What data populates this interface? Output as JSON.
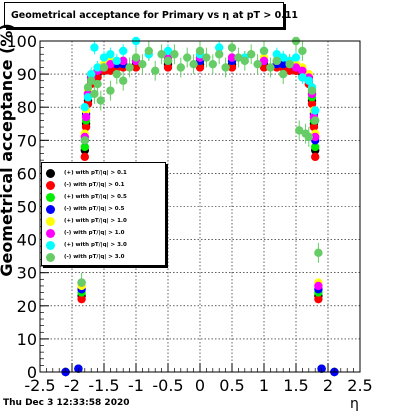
{
  "title": "Geometrical acceptance for Primary vs   η at pT > 0.11",
  "ylabel": "Geometrical acceptance (%)",
  "xlabel": "η",
  "footer": "Thu Dec  3 12:33:58 2020",
  "chart_data": {
    "type": "scatter",
    "title": "Geometrical acceptance for Primary vs   η at pT > 0.11",
    "xlabel": "η",
    "ylabel": "Geometrical acceptance (%)",
    "xlim": [
      -2.5,
      2.5
    ],
    "ylim": [
      0,
      100
    ],
    "xticks": [
      -2.5,
      -2,
      -1.5,
      -1,
      -0.5,
      0,
      0.5,
      1,
      1.5,
      2,
      2.5
    ],
    "yticks": [
      0,
      10,
      20,
      30,
      40,
      50,
      60,
      70,
      80,
      90,
      100
    ],
    "grid": true,
    "legend_position": "left",
    "series": [
      {
        "name": "(+) with pT/|q| > 0.1",
        "color": "#000000",
        "err": 0.6,
        "x": [
          -2.1,
          -1.9,
          -1.85,
          -1.8,
          -1.78,
          -1.75,
          -1.7,
          -1.6,
          -1.5,
          -1.4,
          -1.3,
          -1.2,
          -1.0,
          -0.5,
          0,
          0.5,
          1.0,
          1.2,
          1.3,
          1.4,
          1.5,
          1.6,
          1.7,
          1.75,
          1.78,
          1.8,
          1.85,
          1.9,
          2.1
        ],
        "y": [
          0,
          1,
          23,
          67,
          75,
          82,
          88,
          90,
          91,
          92,
          92,
          93,
          93,
          93,
          93,
          93,
          93,
          93,
          92,
          92,
          91,
          90,
          88,
          82,
          75,
          67,
          23,
          1,
          0
        ]
      },
      {
        "name": "(-) with pT/|q| > 0.1",
        "color": "#ff0000",
        "err": 0.6,
        "x": [
          -2.1,
          -1.9,
          -1.85,
          -1.8,
          -1.78,
          -1.75,
          -1.7,
          -1.6,
          -1.5,
          -1.4,
          -1.3,
          -1.2,
          -1.0,
          -0.5,
          0,
          0.5,
          1.0,
          1.2,
          1.3,
          1.4,
          1.5,
          1.6,
          1.7,
          1.75,
          1.78,
          1.8,
          1.85,
          1.9,
          2.1
        ],
        "y": [
          0,
          1,
          22,
          65,
          74,
          81,
          87,
          89,
          91,
          91,
          92,
          92,
          92,
          92,
          92,
          92,
          92,
          92,
          92,
          91,
          91,
          89,
          87,
          81,
          74,
          65,
          22,
          1,
          0
        ]
      },
      {
        "name": "(+) with pT/|q| > 0.5",
        "color": "#00ee00",
        "err": 0.8,
        "x": [
          -2.1,
          -1.9,
          -1.85,
          -1.8,
          -1.78,
          -1.75,
          -1.7,
          -1.6,
          -1.5,
          -1.4,
          -1.3,
          -1.2,
          -1.0,
          -0.5,
          0,
          0.5,
          1.0,
          1.2,
          1.3,
          1.4,
          1.5,
          1.6,
          1.7,
          1.75,
          1.78,
          1.8,
          1.85,
          1.9,
          2.1
        ],
        "y": [
          0,
          1,
          24,
          68,
          76,
          83,
          89,
          91,
          92,
          93,
          93,
          94,
          94,
          94,
          94,
          94,
          94,
          94,
          93,
          93,
          92,
          91,
          89,
          83,
          76,
          68,
          24,
          1,
          0
        ]
      },
      {
        "name": "(-) with pT/|q| > 0.5",
        "color": "#0000ff",
        "err": 0.8,
        "x": [
          -2.1,
          -1.9,
          -1.85,
          -1.8,
          -1.78,
          -1.75,
          -1.7,
          -1.6,
          -1.5,
          -1.4,
          -1.3,
          -1.2,
          -1.0,
          -0.5,
          0,
          0.5,
          1.0,
          1.2,
          1.3,
          1.4,
          1.5,
          1.6,
          1.7,
          1.75,
          1.78,
          1.8,
          1.85,
          1.9,
          2.1
        ],
        "y": [
          0,
          1,
          25,
          70,
          78,
          84,
          89,
          91,
          92,
          93,
          93,
          93,
          94,
          94,
          94,
          94,
          94,
          93,
          93,
          93,
          92,
          91,
          89,
          84,
          78,
          70,
          25,
          1,
          0
        ]
      },
      {
        "name": "(+) with pT/|q| > 1.0",
        "color": "#ffff00",
        "err": 1.0,
        "x": [
          -1.85,
          -1.8,
          -1.78,
          -1.75,
          -1.7,
          -1.6,
          -1.5,
          -1.4,
          -1.2,
          -1.0,
          -0.5,
          0,
          0.5,
          1.0,
          1.2,
          1.4,
          1.5,
          1.6,
          1.7,
          1.75,
          1.78,
          1.8,
          1.85
        ],
        "y": [
          26,
          72,
          79,
          85,
          90,
          92,
          93,
          94,
          94,
          95,
          95,
          95,
          95,
          95,
          94,
          94,
          93,
          92,
          90,
          85,
          79,
          72,
          27
        ]
      },
      {
        "name": "(-) with pT/|q| > 1.0",
        "color": "#ff00ff",
        "err": 1.0,
        "x": [
          -1.85,
          -1.8,
          -1.78,
          -1.75,
          -1.7,
          -1.6,
          -1.5,
          -1.4,
          -1.2,
          -1.0,
          -0.5,
          0,
          0.5,
          1.0,
          1.2,
          1.4,
          1.5,
          1.6,
          1.7,
          1.75,
          1.78,
          1.8,
          1.85
        ],
        "y": [
          27,
          71,
          77,
          84,
          89,
          91,
          92,
          93,
          94,
          94,
          95,
          95,
          95,
          94,
          94,
          93,
          92,
          91,
          89,
          84,
          77,
          71,
          26
        ]
      },
      {
        "name": "(+) with pT/|q| > 3.0",
        "color": "#00ffff",
        "err": 2.0,
        "x": [
          -1.8,
          -1.75,
          -1.7,
          -1.65,
          -1.6,
          -1.5,
          -1.4,
          -1.3,
          -1.2,
          -1.0,
          -0.8,
          -0.5,
          0,
          0.3,
          0.7,
          1.0,
          1.2,
          1.3,
          1.4,
          1.5,
          1.6,
          1.7,
          1.75,
          1.8
        ],
        "y": [
          80,
          83,
          90,
          98,
          92,
          95,
          96,
          94,
          97,
          100,
          96,
          97,
          96,
          98,
          95,
          97,
          96,
          95,
          94,
          95,
          89,
          88,
          86,
          79
        ]
      },
      {
        "name": "(-) with pT/|q| > 3.0",
        "color": "#66cc66",
        "err": 3.0,
        "x": [
          -1.85,
          -1.8,
          -1.75,
          -1.7,
          -1.65,
          -1.6,
          -1.55,
          -1.5,
          -1.4,
          -1.3,
          -1.2,
          -1.1,
          -1.0,
          -0.9,
          -0.8,
          -0.7,
          -0.6,
          -0.5,
          -0.4,
          -0.3,
          -0.2,
          -0.1,
          0,
          0.1,
          0.2,
          0.3,
          0.4,
          0.5,
          0.6,
          0.7,
          0.8,
          0.9,
          1.0,
          1.1,
          1.2,
          1.3,
          1.4,
          1.5,
          1.55,
          1.6,
          1.65,
          1.7,
          1.75,
          1.8,
          1.85
        ],
        "y": [
          27,
          70,
          86,
          88,
          84,
          87,
          82,
          92,
          85,
          90,
          88,
          92,
          95,
          93,
          97,
          91,
          96,
          94,
          96,
          92,
          95,
          93,
          97,
          95,
          93,
          96,
          92,
          98,
          95,
          94,
          96,
          93,
          97,
          92,
          94,
          90,
          93,
          100,
          73,
          97,
          72,
          71,
          85,
          76,
          36
        ]
      }
    ]
  }
}
